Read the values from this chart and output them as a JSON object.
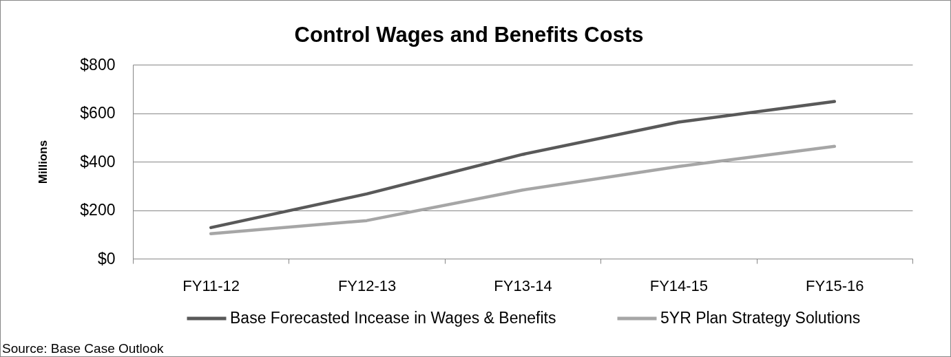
{
  "chart_data": {
    "type": "line",
    "title": "Control Wages and Benefits Costs",
    "ylabel": "Millions",
    "categories": [
      "FY11-12",
      "FY12-13",
      "FY13-14",
      "FY14-15",
      "FY15-16"
    ],
    "series": [
      {
        "name": "Base Forecasted Incease in Wages & Benefits",
        "color": "#595959",
        "values": [
          128,
          267,
          430,
          563,
          648
        ]
      },
      {
        "name": "5YR Plan Strategy Solutions",
        "color": "#a6a6a6",
        "values": [
          103,
          157,
          283,
          380,
          463
        ]
      }
    ],
    "ylim": [
      0,
      800
    ],
    "yticks": [
      {
        "value": 0,
        "label": "$0"
      },
      {
        "value": 200,
        "label": "$200"
      },
      {
        "value": 400,
        "label": "$400"
      },
      {
        "value": 600,
        "label": "$600"
      },
      {
        "value": 800,
        "label": "$800"
      }
    ],
    "grid": "y",
    "legend": "bottom",
    "line_style": "solid",
    "annotations": [
      "Source: Base Case Outlook"
    ]
  }
}
